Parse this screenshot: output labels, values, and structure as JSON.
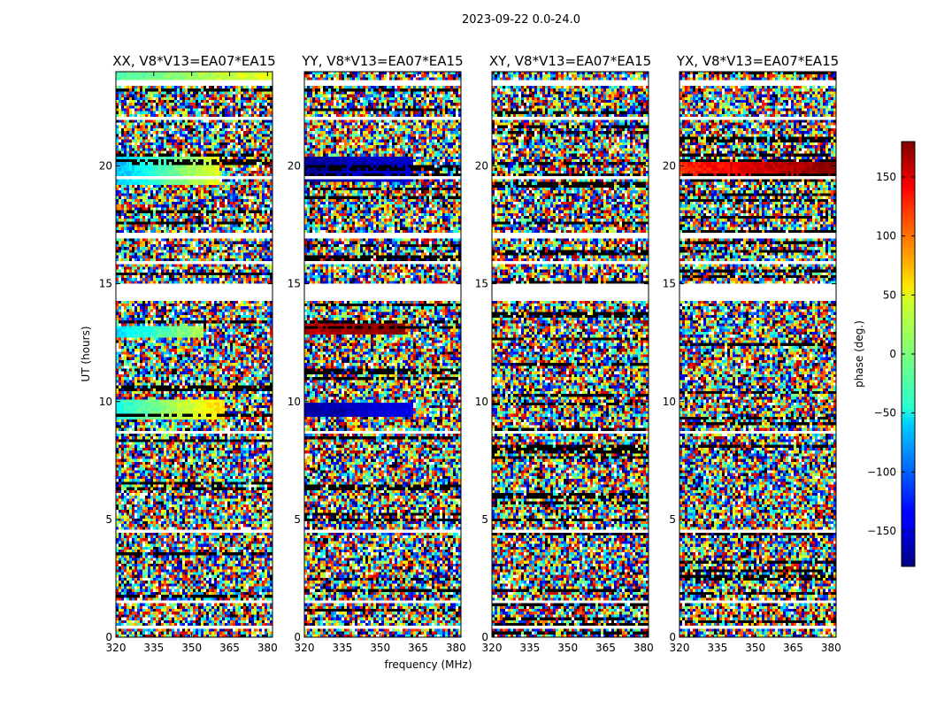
{
  "chart_data": {
    "type": "heatmap",
    "suptitle": "2023-09-22 0.0-24.0",
    "panels": [
      {
        "title": "XX, V8*V13=EA07*EA15",
        "polarization": "XX"
      },
      {
        "title": "YY, V8*V13=EA07*EA15",
        "polarization": "YY"
      },
      {
        "title": "XY, V8*V13=EA07*EA15",
        "polarization": "XY"
      },
      {
        "title": "YX, V8*V13=EA07*EA15",
        "polarization": "YX"
      }
    ],
    "xlabel": "frequency (MHz)",
    "ylabel": "UT (hours)",
    "xlim": [
      320,
      382
    ],
    "ylim": [
      0,
      24
    ],
    "xticks": [
      320,
      335,
      350,
      365,
      380
    ],
    "yticks": [
      0,
      5,
      10,
      15,
      20
    ],
    "colorbar": {
      "label": "phase (deg.)",
      "range": [
        -180,
        180
      ],
      "ticks": [
        150,
        100,
        50,
        0,
        -50,
        -100,
        -150
      ],
      "tick_labels": [
        "150",
        "100",
        "50",
        "0",
        "−50",
        "−100",
        "−150"
      ],
      "colormap": "jet"
    },
    "no_data_gaps_hours": [
      [
        14.3,
        15.0
      ],
      [
        16.9,
        17.1
      ],
      [
        15.8,
        15.9
      ],
      [
        23.4,
        23.6
      ],
      [
        19.5,
        19.6
      ],
      [
        8.7,
        8.8
      ],
      [
        1.4,
        1.5
      ],
      [
        0.4,
        0.45
      ],
      [
        4.4,
        4.5
      ],
      [
        22.0,
        22.1
      ]
    ],
    "coherent_regions": [
      {
        "panel": "XX",
        "hours": [
          19.2,
          20.4
        ],
        "freq_mhz": [
          320,
          361
        ],
        "phase_deg": [
          -70,
          40
        ]
      },
      {
        "panel": "XX",
        "hours": [
          12.7,
          13.2
        ],
        "freq_mhz": [
          320,
          355
        ],
        "phase_deg": [
          -60,
          20
        ]
      },
      {
        "panel": "XX",
        "hours": [
          9.2,
          10.1
        ],
        "freq_mhz": [
          320,
          363
        ],
        "phase_deg": [
          -40,
          60
        ]
      },
      {
        "panel": "XX",
        "hours": [
          23.6,
          24.0
        ],
        "freq_mhz": [
          320,
          382
        ],
        "phase_deg": [
          -20,
          40
        ]
      },
      {
        "panel": "YY",
        "hours": [
          19.3,
          20.4
        ],
        "freq_mhz": [
          320,
          363
        ],
        "phase_deg": [
          -170,
          -150
        ]
      },
      {
        "panel": "YY",
        "hours": [
          12.8,
          13.3
        ],
        "freq_mhz": [
          320,
          360
        ],
        "phase_deg": [
          160,
          180
        ]
      },
      {
        "panel": "YY",
        "hours": [
          9.3,
          10.0
        ],
        "freq_mhz": [
          320,
          363
        ],
        "phase_deg": [
          -170,
          -140
        ]
      },
      {
        "panel": "YX",
        "hours": [
          19.4,
          20.2
        ],
        "freq_mhz": [
          320,
          382
        ],
        "phase_deg": [
          120,
          180
        ]
      }
    ]
  }
}
